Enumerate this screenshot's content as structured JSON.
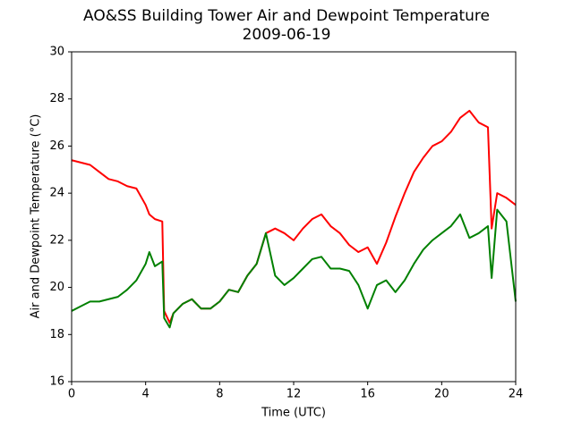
{
  "chart_data": {
    "type": "line",
    "title": "AO&SS Building Tower Air and Dewpoint Temperature",
    "subtitle": "2009-06-19",
    "x_label": "Time (UTC)",
    "y_label": "Air and Dewpoint Temperature (°C)",
    "x": [
      0,
      0.5,
      1,
      1.5,
      2,
      2.5,
      3,
      3.5,
      4,
      4.2,
      4.5,
      4.9,
      5,
      5.3,
      5.5,
      6,
      6.5,
      7,
      7.5,
      8,
      8.5,
      9,
      9.5,
      10,
      10.5,
      11,
      11.5,
      12,
      12.5,
      13,
      13.5,
      14,
      14.5,
      15,
      15.5,
      16,
      16.5,
      17,
      17.5,
      18,
      18.5,
      19,
      19.5,
      20,
      20.5,
      21,
      21.5,
      22,
      22.5,
      22.7,
      23,
      23.5,
      24
    ],
    "series": [
      {
        "color": "#ff0000",
        "values": [
          25.4,
          25.3,
          25.2,
          24.9,
          24.6,
          24.5,
          24.3,
          24.2,
          23.5,
          23.1,
          22.9,
          22.8,
          19.0,
          18.5,
          18.9,
          19.3,
          19.5,
          19.1,
          19.1,
          19.4,
          19.9,
          19.8,
          20.5,
          21.0,
          22.3,
          22.5,
          22.3,
          22.0,
          22.5,
          22.9,
          23.1,
          22.6,
          22.3,
          21.8,
          21.5,
          21.7,
          21.0,
          21.9,
          23.0,
          24.0,
          24.9,
          25.5,
          26.0,
          26.2,
          26.6,
          27.2,
          27.5,
          27.0,
          26.8,
          22.5,
          24.0,
          23.8,
          23.5
        ]
      },
      {
        "color": "#008000",
        "values": [
          19.0,
          19.2,
          19.4,
          19.4,
          19.5,
          19.6,
          19.9,
          20.3,
          21.0,
          21.5,
          20.9,
          21.1,
          18.7,
          18.3,
          18.9,
          19.3,
          19.5,
          19.1,
          19.1,
          19.4,
          19.9,
          19.8,
          20.5,
          21.0,
          22.3,
          20.5,
          20.1,
          20.4,
          20.8,
          21.2,
          21.3,
          20.8,
          20.8,
          20.7,
          20.1,
          19.1,
          20.1,
          20.3,
          19.8,
          20.3,
          21.0,
          21.6,
          22.0,
          22.3,
          22.6,
          23.1,
          22.1,
          22.3,
          22.6,
          20.4,
          23.3,
          22.8,
          19.4
        ]
      }
    ],
    "xlim": [
      0,
      24
    ],
    "xticks": [
      0,
      4,
      8,
      12,
      16,
      20,
      24
    ],
    "ylim": [
      16,
      30
    ],
    "yticks": [
      16,
      18,
      20,
      22,
      24,
      26,
      28,
      30
    ],
    "grid": false
  }
}
